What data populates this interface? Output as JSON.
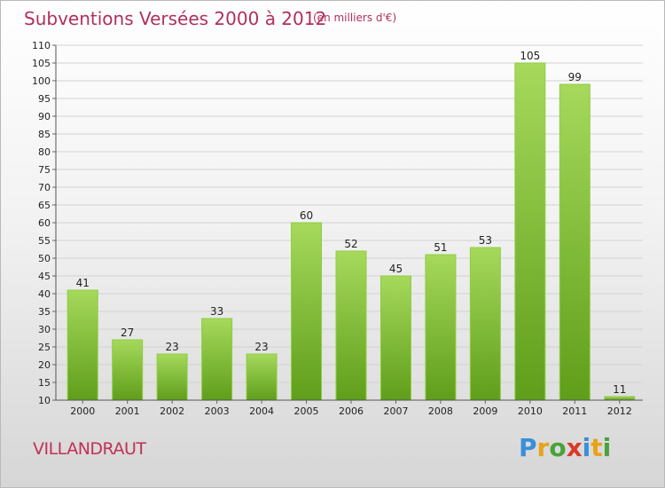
{
  "header": {
    "title": "Subventions Versées 2000 à 2012",
    "unit": "(en milliers d'€)"
  },
  "footer": {
    "place": "VILLANDRAUT",
    "logo_letters": [
      "P",
      "r",
      "o",
      "x",
      "i",
      "t",
      "i"
    ],
    "logo_colors": [
      "#3a8fd8",
      "#e9a21a",
      "#4aa23a",
      "#d93a2a",
      "#3a8fd8",
      "#e9a21a",
      "#4aa23a"
    ]
  },
  "colors": {
    "bar_top": "#a6d95c",
    "bar_bottom": "#5f9e1a",
    "grid": "#d2d2d2",
    "axis_text": "#222222"
  },
  "chart_data": {
    "type": "bar",
    "title": "Subventions Versées 2000 à 2012",
    "subtitle": "(en milliers d'€)",
    "xlabel": "",
    "ylabel": "",
    "categories": [
      "2000",
      "2001",
      "2002",
      "2003",
      "2004",
      "2005",
      "2006",
      "2007",
      "2008",
      "2009",
      "2010",
      "2011",
      "2012"
    ],
    "values": [
      41,
      27,
      23,
      33,
      23,
      60,
      52,
      45,
      51,
      53,
      105,
      99,
      11
    ],
    "ylim": [
      10,
      110
    ],
    "yticks": [
      10,
      15,
      20,
      25,
      30,
      35,
      40,
      45,
      50,
      55,
      60,
      65,
      70,
      75,
      80,
      85,
      90,
      95,
      100,
      105,
      110
    ],
    "grid": true,
    "legend": "none"
  }
}
